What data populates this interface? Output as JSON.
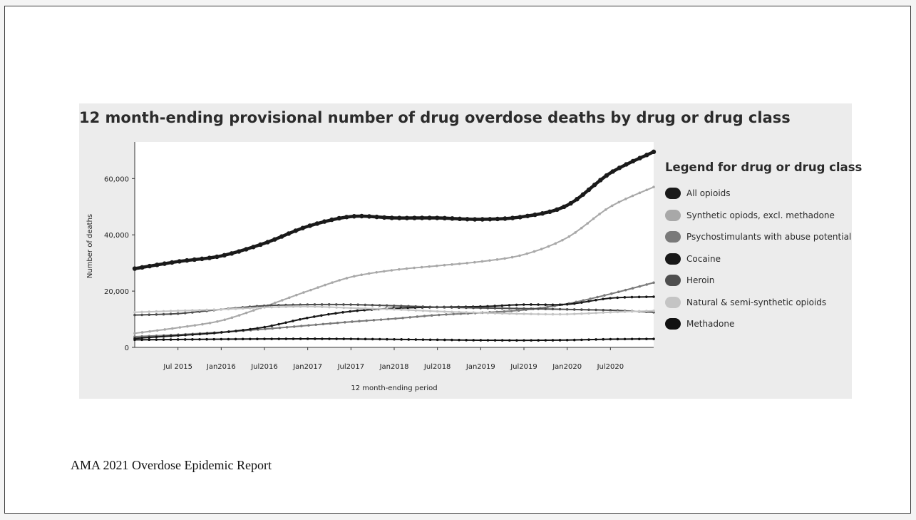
{
  "caption": "AMA 2021  Overdose Epidemic Report",
  "chart_data": {
    "type": "line",
    "title": "12 month-ending provisional number of drug overdose deaths by drug or drug class",
    "xlabel": "12 month-ending period",
    "ylabel": "Number of deaths",
    "x_ticks": [
      "Jul 2015",
      "Jan2016",
      "Jul2016",
      "Jan2017",
      "Jul2017",
      "Jan2018",
      "Jul2018",
      "Jan2019",
      "Jul2019",
      "Jan2020",
      "Jul2020"
    ],
    "y_ticks": [
      "0",
      "20,000",
      "40,000",
      "60,000"
    ],
    "ylim": [
      0,
      72000
    ],
    "x_start": "2015-01",
    "x_end": "2021-01",
    "grid": false,
    "legend_title": "Legend for drug or drug class",
    "legend_position": "right",
    "x": [
      "2015-01",
      "2015-07",
      "2016-01",
      "2016-07",
      "2017-01",
      "2017-07",
      "2018-01",
      "2018-07",
      "2019-01",
      "2019-07",
      "2020-01",
      "2020-07",
      "2021-01"
    ],
    "series": [
      {
        "name": "All opioids",
        "color": "#1a1a1a",
        "values": [
          28000,
          30500,
          32500,
          37000,
          43000,
          46500,
          46000,
          46000,
          45500,
          46500,
          50500,
          62000,
          69500
        ]
      },
      {
        "name": "Synthetic opiods, excl. methadone",
        "color": "#a8a8a8",
        "values": [
          5000,
          7000,
          9500,
          14500,
          20000,
          25000,
          27500,
          29000,
          30500,
          33000,
          39000,
          50000,
          57000
        ]
      },
      {
        "name": "Psychostimulants with abuse potential",
        "color": "#7a7a7a",
        "values": [
          3800,
          4500,
          5400,
          6500,
          7800,
          9100,
          10200,
          11500,
          12300,
          13300,
          15500,
          19000,
          23000
        ]
      },
      {
        "name": "Cocaine",
        "color": "#181818",
        "values": [
          3200,
          4200,
          5300,
          7200,
          10500,
          12800,
          13900,
          14300,
          14500,
          15200,
          15300,
          17500,
          18000
        ]
      },
      {
        "name": "Heroin",
        "color": "#4e4e4e",
        "values": [
          11500,
          12000,
          13500,
          14800,
          15200,
          15200,
          14800,
          14300,
          14000,
          13800,
          13500,
          13200,
          12500
        ]
      },
      {
        "name": "Natural & semi-synthetic opioids",
        "color": "#c4c4c4",
        "values": [
          12500,
          13000,
          13500,
          14200,
          14500,
          14000,
          13500,
          12800,
          12300,
          11900,
          11800,
          12500,
          13000
        ]
      },
      {
        "name": "Methadone",
        "color": "#111111",
        "values": [
          2700,
          2800,
          2900,
          3000,
          3050,
          3000,
          2850,
          2700,
          2550,
          2500,
          2600,
          2900,
          3000
        ]
      }
    ]
  }
}
